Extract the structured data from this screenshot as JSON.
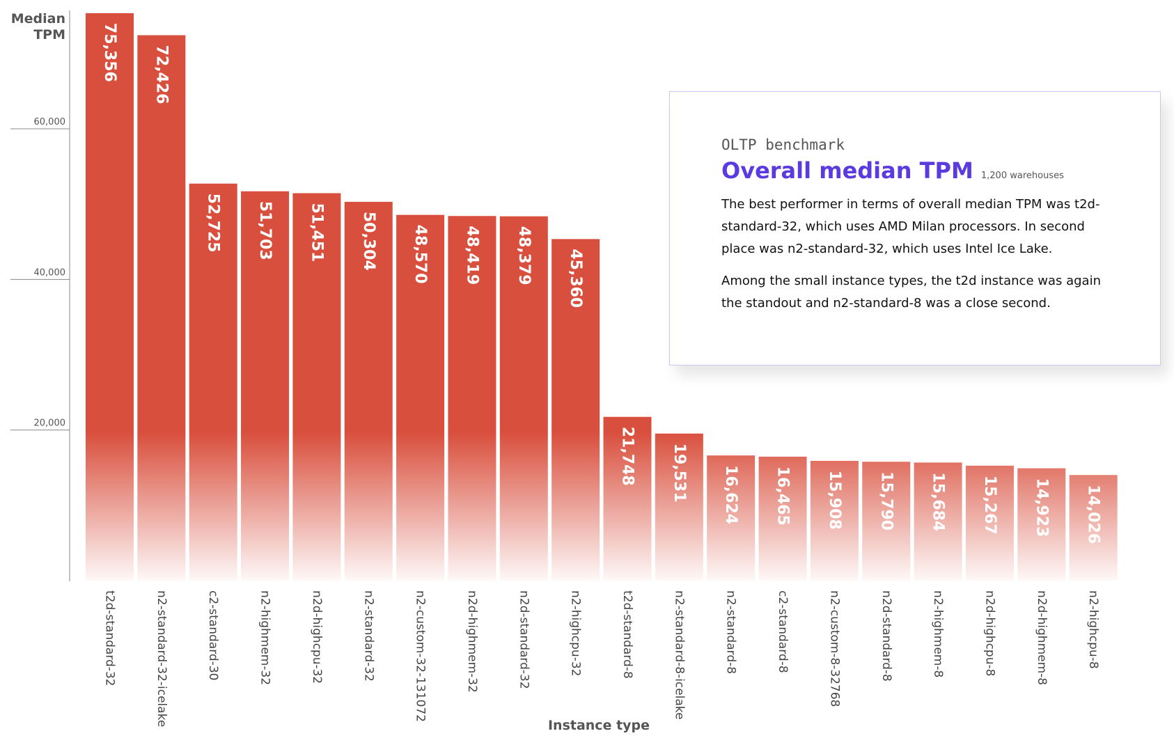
{
  "chart_data": {
    "type": "bar",
    "ylabel": "Median TPM",
    "xlabel": "Instance type",
    "ylim": [
      0,
      76000
    ],
    "yticks": [
      20000,
      40000,
      60000
    ],
    "ytick_labels": [
      "20,000",
      "40,000",
      "60,000"
    ],
    "grid": false,
    "bar_color": "#d94f3d",
    "categories": [
      "t2d-standard-32",
      "n2-standard-32-icelake",
      "c2-standard-30",
      "n2-highmem-32",
      "n2d-highcpu-32",
      "n2-standard-32",
      "n2-custom-32-131072",
      "n2d-highmem-32",
      "n2d-standard-32",
      "n2-highcpu-32",
      "t2d-standard-8",
      "n2-standard-8-icelake",
      "n2-standard-8",
      "c2-standard-8",
      "n2-custom-8-32768",
      "n2d-standard-8",
      "n2-highmem-8",
      "n2d-highcpu-8",
      "n2d-highmem-8",
      "n2-highcpu-8"
    ],
    "values": [
      75356,
      72426,
      52725,
      51703,
      51451,
      50304,
      48570,
      48419,
      48379,
      45360,
      21748,
      19531,
      16624,
      16465,
      15908,
      15790,
      15684,
      15267,
      14923,
      14026
    ],
    "data_labels": [
      "75,356",
      "72,426",
      "52,725",
      "51,703",
      "51,451",
      "50,304",
      "48,570",
      "48,419",
      "48,379",
      "45,360",
      "21,748",
      "19,531",
      "16,624",
      "16,465",
      "15,908",
      "15,790",
      "15,684",
      "15,267",
      "14,923",
      "14,026"
    ]
  },
  "axis": {
    "y_title_line1": "Median",
    "y_title_line2": "TPM",
    "x_title": "Instance type"
  },
  "card": {
    "kicker": "OLTP benchmark",
    "title": "Overall median TPM",
    "note": "1,200 warehouses",
    "paragraph1": "The best performer in terms of overall median TPM was t2d-standard-32, which uses AMD Milan processors. In second place was n2-standard-32, which uses Intel Ice Lake.",
    "paragraph2": "Among the small instance types, the t2d instance was again the standout and n2-standard-8  was a close second.",
    "title_color": "#5b3be0",
    "border_color": "#c9c6f0"
  }
}
